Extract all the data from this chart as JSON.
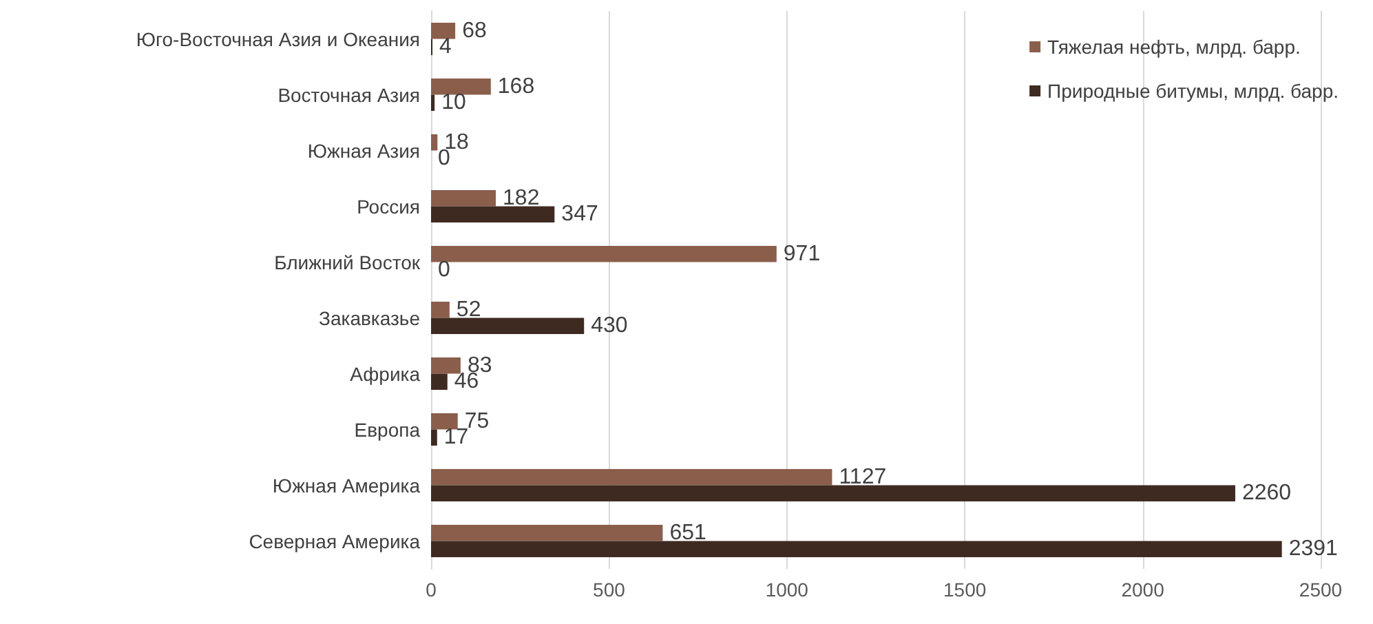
{
  "chart_data": {
    "type": "bar",
    "orientation": "horizontal",
    "categories": [
      "Юго-Восточная Азия и Океания",
      "Восточная Азия",
      "Южная Азия",
      "Россия",
      "Ближний Восток",
      "Закавказье",
      "Африка",
      "Европа",
      "Южная Америка",
      "Северная Америка"
    ],
    "series": [
      {
        "name": "Тяжелая нефть, млрд. барр.",
        "color": "#8b5e4b",
        "values": [
          68,
          168,
          18,
          182,
          971,
          52,
          83,
          75,
          1127,
          651
        ]
      },
      {
        "name": "Природные битумы, млрд. барр.",
        "color": "#3f2a22",
        "values": [
          4,
          10,
          0,
          347,
          0,
          430,
          46,
          17,
          2260,
          2391
        ]
      }
    ],
    "xlim": [
      0,
      2500
    ],
    "xticks": [
      0,
      500,
      1000,
      1500,
      2000,
      2500
    ],
    "grid": "x",
    "legend": "top right",
    "data_labels": true
  }
}
